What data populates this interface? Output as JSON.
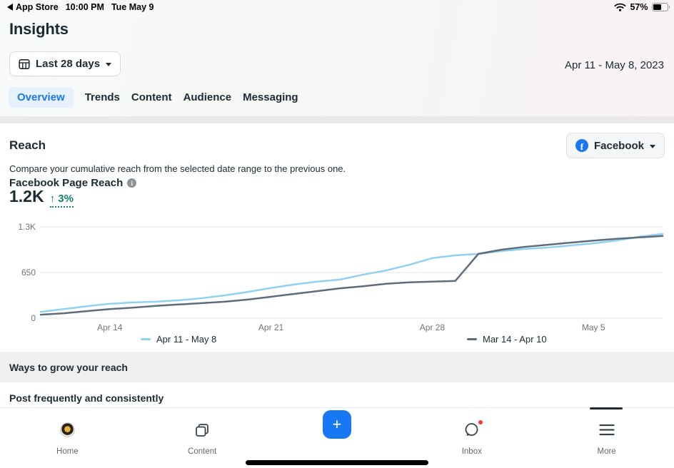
{
  "status_bar": {
    "back_app": "App Store",
    "time": "10:00 PM",
    "date": "Tue May 9",
    "battery_percent": "57%"
  },
  "header": {
    "title": "Insights",
    "date_filter_label": "Last 28 days",
    "date_range": "Apr 11 - May 8, 2023",
    "tabs": [
      {
        "label": "Overview",
        "active": true
      },
      {
        "label": "Trends",
        "active": false
      },
      {
        "label": "Content",
        "active": false
      },
      {
        "label": "Audience",
        "active": false
      },
      {
        "label": "Messaging",
        "active": false
      }
    ]
  },
  "reach": {
    "title": "Reach",
    "platform_selector": "Facebook",
    "description": "Compare your cumulative reach from the selected date range to the previous one.",
    "metric_label": "Facebook Page Reach",
    "metric_value": "1.2K",
    "metric_delta": "↑ 3%"
  },
  "chart_data": {
    "type": "line",
    "title": "Facebook Page Reach comparison",
    "x_range": [
      "Apr 11",
      "May 8"
    ],
    "x_points": 28,
    "x_ticks": [
      "Apr 14",
      "Apr 21",
      "Apr 28",
      "May 5"
    ],
    "x_tick_days": [
      3,
      10,
      17,
      24
    ],
    "y_ticks": [
      {
        "label": "0",
        "value": 0
      },
      {
        "label": "650",
        "value": 650
      },
      {
        "label": "1.3K",
        "value": 1300
      }
    ],
    "ylim": [
      0,
      1300
    ],
    "grid": true,
    "legend_position": "bottom",
    "series": [
      {
        "name": "Apr 11 - May 8",
        "color": "#90d1f1",
        "values": [
          90,
          130,
          170,
          205,
          225,
          235,
          255,
          285,
          325,
          375,
          430,
          480,
          520,
          550,
          620,
          680,
          760,
          855,
          895,
          915,
          955,
          985,
          1005,
          1035,
          1065,
          1105,
          1160,
          1200
        ]
      },
      {
        "name": "Mar 14 - Apr 10",
        "color": "#5e6c7b",
        "values": [
          50,
          70,
          100,
          130,
          150,
          175,
          195,
          215,
          235,
          265,
          305,
          345,
          385,
          425,
          455,
          490,
          510,
          520,
          530,
          915,
          975,
          1015,
          1045,
          1075,
          1105,
          1130,
          1150,
          1170
        ]
      }
    ]
  },
  "sections": {
    "ways_to_grow": "Ways to grow your reach",
    "tip": "Post frequently and consistently"
  },
  "bottom_nav": {
    "items": [
      {
        "label": "Home",
        "active": false
      },
      {
        "label": "Content",
        "active": false
      },
      {
        "label": "Inbox",
        "active": false,
        "has_notification": true
      },
      {
        "label": "More",
        "active": true
      }
    ]
  },
  "icons": {
    "facebook_logo_glyph": "f",
    "info_glyph": "i",
    "plus_glyph": "+"
  },
  "colors": {
    "accent_blue": "#1877f2",
    "active_tab_bg": "#e7f0fd",
    "delta_green": "#0b8370",
    "series_blue": "#90d1f1",
    "series_gray": "#5e6c7b",
    "notification_red": "#fa383e",
    "divider_gray": "#e9e9e9",
    "band_gray": "#efefef"
  }
}
